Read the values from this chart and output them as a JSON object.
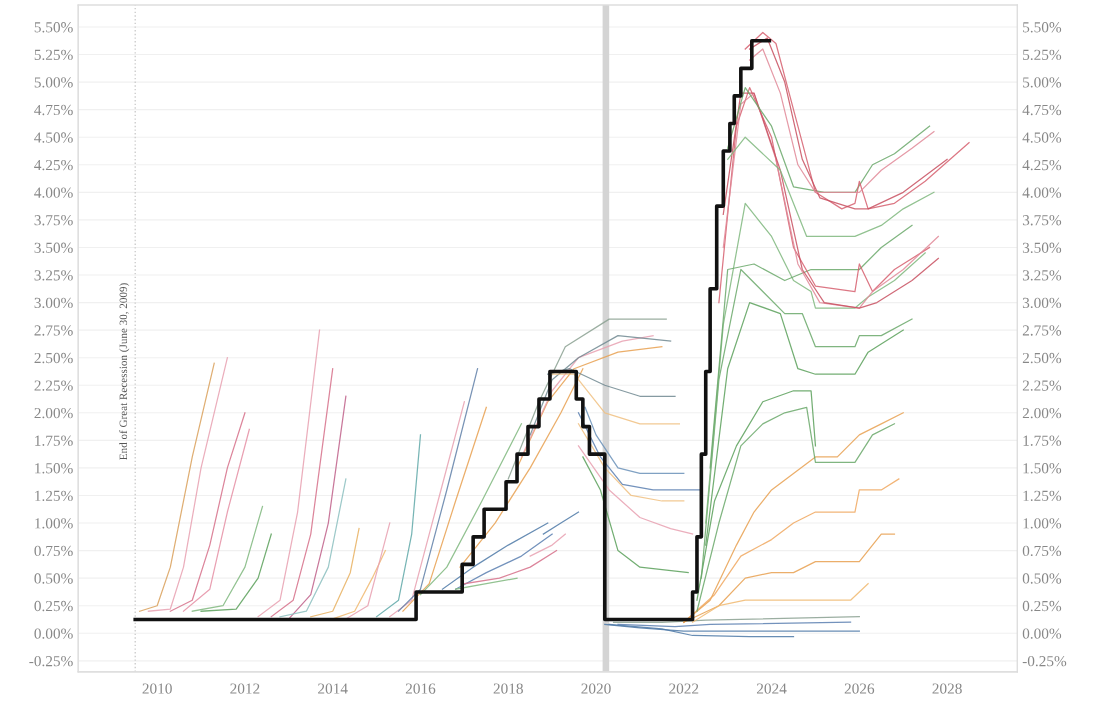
{
  "chart_data": {
    "type": "line",
    "xlim": [
      2008.2,
      2029.6
    ],
    "xticks": [
      2010,
      2012,
      2014,
      2016,
      2018,
      2020,
      2022,
      2024,
      2026,
      2028
    ],
    "ylim": [
      -0.35,
      5.7
    ],
    "yticks": [
      {
        "value": -0.25,
        "label": "-0.25%"
      },
      {
        "value": 0,
        "label": "0.00%"
      },
      {
        "value": 0.25,
        "label": "0.25%"
      },
      {
        "value": 0.5,
        "label": "0.50%"
      },
      {
        "value": 0.75,
        "label": "0.75%"
      },
      {
        "value": 1.0,
        "label": "1.00%"
      },
      {
        "value": 1.25,
        "label": "1.25%"
      },
      {
        "value": 1.5,
        "label": "1.50%"
      },
      {
        "value": 1.75,
        "label": "1.75%"
      },
      {
        "value": 2.0,
        "label": "2.00%"
      },
      {
        "value": 2.25,
        "label": "2.25%"
      },
      {
        "value": 2.5,
        "label": "2.50%"
      },
      {
        "value": 2.75,
        "label": "2.75%"
      },
      {
        "value": 3.0,
        "label": "3.00%"
      },
      {
        "value": 3.25,
        "label": "3.25%"
      },
      {
        "value": 3.5,
        "label": "3.50%"
      },
      {
        "value": 3.75,
        "label": "3.75%"
      },
      {
        "value": 4.0,
        "label": "4.00%"
      },
      {
        "value": 4.25,
        "label": "4.25%"
      },
      {
        "value": 4.5,
        "label": "4.50%"
      },
      {
        "value": 4.75,
        "label": "4.75%"
      },
      {
        "value": 5.0,
        "label": "5.00%"
      },
      {
        "value": 5.25,
        "label": "5.25%"
      },
      {
        "value": 5.5,
        "label": "5.50%"
      }
    ],
    "y2lim": [
      -0.35,
      5.7
    ],
    "y2ticks": [
      {
        "value": -0.25,
        "label": "-0.25%"
      },
      {
        "value": 0,
        "label": "0.00%"
      },
      {
        "value": 0.25,
        "label": "0.25%"
      },
      {
        "value": 0.5,
        "label": "0.50%"
      },
      {
        "value": 0.75,
        "label": "0.75%"
      },
      {
        "value": 1.0,
        "label": "1.00%"
      },
      {
        "value": 1.25,
        "label": "1.25%"
      },
      {
        "value": 1.5,
        "label": "1.50%"
      },
      {
        "value": 1.75,
        "label": "1.75%"
      },
      {
        "value": 2.0,
        "label": "2.00%"
      },
      {
        "value": 2.25,
        "label": "2.25%"
      },
      {
        "value": 2.5,
        "label": "2.50%"
      },
      {
        "value": 2.75,
        "label": "2.75%"
      },
      {
        "value": 3.0,
        "label": "3.00%"
      },
      {
        "value": 3.25,
        "label": "3.25%"
      },
      {
        "value": 3.5,
        "label": "3.50%"
      },
      {
        "value": 3.75,
        "label": "3.75%"
      },
      {
        "value": 4.0,
        "label": "4.00%"
      },
      {
        "value": 4.25,
        "label": "4.25%"
      },
      {
        "value": 4.5,
        "label": "4.50%"
      },
      {
        "value": 4.75,
        "label": "4.75%"
      },
      {
        "value": 5.0,
        "label": "5.00%"
      },
      {
        "value": 5.25,
        "label": "5.25%"
      },
      {
        "value": 5.5,
        "label": "5.50%"
      }
    ],
    "grid": "y",
    "ref_lines": [
      {
        "axis": "x",
        "value": 2009.5,
        "label": "End of Great Recession (June 30, 2009)",
        "color": "#cccccc",
        "line_style": "dotted"
      }
    ],
    "bands": [
      {
        "axis": "x",
        "from": 2020.15,
        "to": 2020.3,
        "color": "#d4d4d4"
      }
    ],
    "series": [
      {
        "color": "#d9a05b",
        "x": [
          2009.6,
          2010.0,
          2010.3,
          2010.8,
          2011.3
        ],
        "values": [
          0.2,
          0.25,
          0.6,
          1.6,
          2.45
        ]
      },
      {
        "color": "#e8a0b0",
        "x": [
          2009.8,
          2010.3,
          2010.6,
          2011.0,
          2011.6
        ],
        "values": [
          0.2,
          0.22,
          0.6,
          1.5,
          2.5
        ]
      },
      {
        "color": "#d6708a",
        "x": [
          2010.3,
          2010.8,
          2011.2,
          2011.6,
          2012.0
        ],
        "values": [
          0.2,
          0.3,
          0.8,
          1.5,
          2.0
        ]
      },
      {
        "color": "#e58fa5",
        "x": [
          2010.6,
          2011.2,
          2011.6,
          2012.1
        ],
        "values": [
          0.2,
          0.4,
          1.1,
          1.85
        ]
      },
      {
        "color": "#7fb77e",
        "x": [
          2010.8,
          2011.5,
          2012.0,
          2012.4
        ],
        "values": [
          0.2,
          0.25,
          0.6,
          1.15
        ]
      },
      {
        "color": "#5aa05a",
        "x": [
          2011.0,
          2011.8,
          2012.3,
          2012.6
        ],
        "values": [
          0.2,
          0.22,
          0.5,
          0.9
        ]
      },
      {
        "color": "#e8a0b0",
        "x": [
          2012.3,
          2012.8,
          2013.2,
          2013.7
        ],
        "values": [
          0.15,
          0.3,
          1.1,
          2.75
        ]
      },
      {
        "color": "#d6708a",
        "x": [
          2012.6,
          2013.1,
          2013.5,
          2014.0
        ],
        "values": [
          0.15,
          0.3,
          0.9,
          2.4
        ]
      },
      {
        "color": "#c0608a",
        "x": [
          2013.0,
          2013.5,
          2013.9,
          2014.3
        ],
        "values": [
          0.13,
          0.35,
          1.0,
          2.15
        ]
      },
      {
        "color": "#8cc0c0",
        "x": [
          2012.8,
          2013.4,
          2013.9,
          2014.3
        ],
        "values": [
          0.15,
          0.2,
          0.6,
          1.4
        ]
      },
      {
        "color": "#e8b060",
        "x": [
          2013.5,
          2014.0,
          2014.4,
          2014.6
        ],
        "values": [
          0.15,
          0.2,
          0.55,
          0.95
        ]
      },
      {
        "color": "#f0b870",
        "x": [
          2014.0,
          2014.5,
          2014.9,
          2015.2
        ],
        "values": [
          0.13,
          0.2,
          0.5,
          0.75
        ]
      },
      {
        "color": "#e8a0b0",
        "x": [
          2014.3,
          2014.8,
          2015.0,
          2015.3
        ],
        "values": [
          0.13,
          0.25,
          0.55,
          1.0
        ]
      },
      {
        "color": "#5fa8a8",
        "x": [
          2015.0,
          2015.5,
          2015.8,
          2016.0
        ],
        "values": [
          0.15,
          0.3,
          0.9,
          1.8
        ]
      },
      {
        "color": "#e8a0b0",
        "x": [
          2015.3,
          2015.8,
          2016.4,
          2017.0
        ],
        "values": [
          0.15,
          0.3,
          1.2,
          2.1
        ]
      },
      {
        "color": "#6080a8",
        "x": [
          2015.5,
          2016.0,
          2016.6,
          2017.3
        ],
        "values": [
          0.2,
          0.4,
          1.3,
          2.4
        ]
      },
      {
        "color": "#e8a050",
        "x": [
          2015.6,
          2016.2,
          2016.8,
          2017.5
        ],
        "values": [
          0.2,
          0.45,
          1.2,
          2.05
        ]
      },
      {
        "color": "#7fb77e",
        "x": [
          2016.0,
          2016.6,
          2017.4,
          2018.3
        ],
        "values": [
          0.35,
          0.6,
          1.2,
          1.9
        ]
      },
      {
        "color": "#4e79a7",
        "x": [
          2016.5,
          2017.2,
          2018.0,
          2018.9
        ],
        "values": [
          0.4,
          0.6,
          0.8,
          1.0
        ]
      },
      {
        "color": "#5a7fb0",
        "x": [
          2016.8,
          2017.5,
          2018.3,
          2019.0
        ],
        "values": [
          0.4,
          0.55,
          0.7,
          0.9
        ]
      },
      {
        "color": "#d6708a",
        "x": [
          2017.0,
          2017.8,
          2018.5,
          2019.1
        ],
        "values": [
          0.45,
          0.5,
          0.6,
          0.75
        ]
      },
      {
        "color": "#7fb77e",
        "x": [
          2016.8,
          2017.5,
          2018.2
        ],
        "values": [
          0.4,
          0.45,
          0.5
        ]
      },
      {
        "color": "#e8a050",
        "x": [
          2016.9,
          2017.7,
          2018.5,
          2019.2,
          2019.7
        ],
        "values": [
          0.6,
          1.0,
          1.5,
          2.0,
          2.4
        ]
      },
      {
        "color": "#8aa090",
        "x": [
          2018.0,
          2018.7,
          2019.3,
          2020.3,
          2021.6
        ],
        "values": [
          1.4,
          2.1,
          2.6,
          2.85,
          2.85
        ]
      },
      {
        "color": "#e8a050",
        "x": [
          2018.2,
          2018.9,
          2019.5,
          2020.5,
          2021.5
        ],
        "values": [
          1.5,
          2.1,
          2.4,
          2.55,
          2.6
        ]
      },
      {
        "color": "#e8a0b0",
        "x": [
          2018.3,
          2019.0,
          2019.6,
          2020.6,
          2021.3
        ],
        "values": [
          1.6,
          2.2,
          2.5,
          2.65,
          2.7
        ]
      },
      {
        "color": "#708890",
        "x": [
          2018.5,
          2019.0,
          2019.6,
          2020.5,
          2021.7
        ],
        "values": [
          1.8,
          2.3,
          2.5,
          2.7,
          2.65
        ]
      },
      {
        "color": "#708890",
        "x": [
          2018.9,
          2019.4,
          2020.2,
          2021.0,
          2021.8
        ],
        "values": [
          2.35,
          2.4,
          2.25,
          2.15,
          2.15
        ]
      },
      {
        "color": "#f0c080",
        "x": [
          2019.0,
          2019.5,
          2020.2,
          2021.0,
          2021.9
        ],
        "values": [
          2.35,
          2.35,
          2.0,
          1.9,
          1.9
        ]
      },
      {
        "color": "#6a90b8",
        "x": [
          2019.75,
          2020.0,
          2020.5,
          2021.0,
          2022.0
        ],
        "values": [
          2.05,
          1.8,
          1.5,
          1.45,
          1.45
        ]
      },
      {
        "color": "#5a7fb0",
        "x": [
          2019.6,
          2020.1,
          2020.6,
          2021.3,
          2022.4
        ],
        "values": [
          2.0,
          1.6,
          1.35,
          1.3,
          1.3
        ]
      },
      {
        "color": "#f0c080",
        "x": [
          2019.6,
          2020.2,
          2020.8,
          2021.5,
          2022.0
        ],
        "values": [
          1.9,
          1.5,
          1.25,
          1.2,
          1.2
        ]
      },
      {
        "color": "#e8a0b0",
        "x": [
          2019.6,
          2020.3,
          2021.0,
          2021.7,
          2022.2
        ],
        "values": [
          1.7,
          1.3,
          1.05,
          0.95,
          0.9
        ]
      },
      {
        "color": "#5aa05a",
        "x": [
          2019.7,
          2020.1,
          2020.5,
          2021.0,
          2022.1
        ],
        "values": [
          1.6,
          1.3,
          0.75,
          0.6,
          0.55
        ]
      },
      {
        "color": "#e8a0b0",
        "x": [
          2018.5,
          2019.0,
          2019.3
        ],
        "values": [
          0.7,
          0.8,
          0.9
        ]
      },
      {
        "color": "#4e79a7",
        "x": [
          2018.8,
          2019.2,
          2019.6
        ],
        "values": [
          0.9,
          1.0,
          1.1
        ]
      },
      {
        "color": "#4e79a7",
        "x": [
          2020.2,
          2021.0,
          2022.0,
          2023.0,
          2026.0
        ],
        "values": [
          0.08,
          0.05,
          0.02,
          0.02,
          0.02
        ]
      },
      {
        "color": "#4e79a7",
        "x": [
          2020.3,
          2021.5,
          2022.2,
          2023.5,
          2024.5
        ],
        "values": [
          0.08,
          0.04,
          -0.02,
          -0.03,
          -0.03
        ]
      },
      {
        "color": "#8aa090",
        "x": [
          2020.4,
          2021.5,
          2022.5,
          2026.0
        ],
        "values": [
          0.1,
          0.1,
          0.12,
          0.15
        ]
      },
      {
        "color": "#5a7fb0",
        "x": [
          2020.5,
          2021.8,
          2022.6,
          2025.8
        ],
        "values": [
          0.08,
          0.06,
          0.08,
          0.1
        ]
      },
      {
        "color": "#e8a050",
        "x": [
          2022.0,
          2022.6,
          2023.2,
          2023.6,
          2024.0,
          2024.5,
          2025.0,
          2025.5,
          2026.0,
          2026.5,
          2027.0
        ],
        "values": [
          0.1,
          0.3,
          0.8,
          1.1,
          1.3,
          1.45,
          1.6,
          1.6,
          1.8,
          1.9,
          2.0
        ]
      },
      {
        "color": "#f0a860",
        "x": [
          2022.0,
          2022.7,
          2023.3,
          2024.0,
          2024.5,
          2025.0,
          2025.9,
          2026.0,
          2026.5,
          2026.9
        ],
        "values": [
          0.1,
          0.35,
          0.7,
          0.85,
          1.0,
          1.1,
          1.1,
          1.3,
          1.3,
          1.4
        ]
      },
      {
        "color": "#e8a050",
        "x": [
          2022.0,
          2022.8,
          2023.4,
          2024.0,
          2024.5,
          2025.0,
          2026.0,
          2026.5,
          2026.8
        ],
        "values": [
          0.1,
          0.25,
          0.5,
          0.55,
          0.55,
          0.65,
          0.65,
          0.9,
          0.9
        ]
      },
      {
        "color": "#f0b870",
        "x": [
          2022.2,
          2022.8,
          2023.4,
          2025.0,
          2025.8,
          2026.2
        ],
        "values": [
          0.1,
          0.25,
          0.3,
          0.3,
          0.3,
          0.45
        ]
      },
      {
        "color": "#6aa86a",
        "x": [
          2022.3,
          2022.8,
          2023.3,
          2023.8,
          2024.3,
          2024.8,
          2025.0,
          2025.9,
          2026.3,
          2026.8
        ],
        "values": [
          0.2,
          1.0,
          1.7,
          1.9,
          2.0,
          2.05,
          1.55,
          1.55,
          1.8,
          1.9
        ]
      },
      {
        "color": "#5aa05a",
        "x": [
          2022.3,
          2022.7,
          2023.2,
          2023.8,
          2024.5,
          2024.9,
          2025.0
        ],
        "values": [
          0.3,
          1.2,
          1.7,
          2.1,
          2.2,
          2.2,
          1.7
        ]
      },
      {
        "color": "#6aa86a",
        "x": [
          2022.4,
          2022.8,
          2023.3,
          2023.8,
          2024.3,
          2024.7,
          2025.0,
          2025.9,
          2026.0,
          2026.5,
          2027.2
        ],
        "values": [
          0.5,
          2.3,
          3.3,
          3.1,
          2.9,
          2.9,
          2.6,
          2.6,
          2.7,
          2.7,
          2.85
        ]
      },
      {
        "color": "#7fb77e",
        "x": [
          2022.5,
          2022.9,
          2023.4,
          2024.0,
          2024.5,
          2024.9,
          2025.0,
          2025.9,
          2026.2,
          2026.8,
          2027.5
        ],
        "values": [
          1.0,
          2.8,
          3.9,
          3.6,
          3.2,
          3.1,
          2.95,
          2.95,
          3.05,
          3.2,
          3.45
        ]
      },
      {
        "color": "#5aa05a",
        "x": [
          2022.5,
          2023.0,
          2023.5,
          2024.2,
          2024.6,
          2025.0,
          2025.9,
          2026.2,
          2027.0
        ],
        "values": [
          0.8,
          2.4,
          3.0,
          2.9,
          2.4,
          2.35,
          2.35,
          2.55,
          2.75
        ]
      },
      {
        "color": "#6aa86a",
        "x": [
          2022.6,
          2023.0,
          2023.6,
          2024.3,
          2024.9,
          2025.0,
          2026.0,
          2026.5,
          2027.2
        ],
        "values": [
          1.5,
          3.3,
          3.35,
          3.2,
          3.3,
          3.3,
          3.3,
          3.5,
          3.7
        ]
      },
      {
        "color": "#d65f6f",
        "x": [
          2022.8,
          2023.2,
          2023.5,
          2024.0,
          2024.5,
          2025.0,
          2025.9,
          2026.0,
          2026.3,
          2026.8,
          2027.6
        ],
        "values": [
          3.0,
          4.6,
          4.95,
          4.5,
          3.5,
          3.15,
          3.1,
          3.35,
          3.1,
          3.3,
          3.5
        ]
      },
      {
        "color": "#e08898",
        "x": [
          2022.9,
          2023.3,
          2023.6,
          2024.1,
          2024.6,
          2025.1,
          2026.0,
          2026.3,
          2027.0,
          2027.8
        ],
        "values": [
          3.5,
          4.8,
          4.9,
          4.3,
          3.35,
          3.0,
          2.95,
          3.1,
          3.3,
          3.6
        ]
      },
      {
        "color": "#c85060",
        "x": [
          2022.9,
          2023.3,
          2023.6,
          2024.2,
          2024.7,
          2025.2,
          2026.0,
          2026.4,
          2027.2,
          2027.8
        ],
        "values": [
          3.8,
          4.9,
          4.9,
          4.2,
          3.3,
          3.0,
          2.95,
          3.0,
          3.2,
          3.4
        ]
      },
      {
        "color": "#6aa86a",
        "x": [
          2023.0,
          2023.4,
          2024.0,
          2024.5,
          2025.2,
          2025.9,
          2026.3,
          2026.8,
          2027.6
        ],
        "values": [
          4.4,
          4.95,
          4.6,
          4.05,
          4.0,
          4.0,
          4.25,
          4.35,
          4.6
        ]
      },
      {
        "color": "#7fb77e",
        "x": [
          2023.0,
          2023.4,
          2024.2,
          2024.8,
          2025.5,
          2025.9,
          2026.5,
          2027.0,
          2027.7
        ],
        "values": [
          4.3,
          4.5,
          4.2,
          3.6,
          3.6,
          3.6,
          3.7,
          3.85,
          4.0
        ]
      },
      {
        "color": "#d65f6f",
        "x": [
          2023.4,
          2023.8,
          2024.1,
          2024.6,
          2025.0,
          2025.6,
          2025.9,
          2026.0,
          2026.2,
          2026.8,
          2027.5,
          2028.5
        ],
        "values": [
          5.3,
          5.45,
          5.35,
          4.6,
          4.0,
          3.85,
          3.9,
          4.1,
          3.85,
          3.9,
          4.1,
          4.45
        ]
      },
      {
        "color": "#c85060",
        "x": [
          2023.5,
          2023.9,
          2024.3,
          2024.7,
          2025.1,
          2025.9,
          2026.2,
          2027.0,
          2028.0
        ],
        "values": [
          5.3,
          5.4,
          5.0,
          4.3,
          3.95,
          3.85,
          3.85,
          4.0,
          4.3
        ]
      },
      {
        "color": "#e08898",
        "x": [
          2023.5,
          2023.8,
          2024.2,
          2024.6,
          2025.0,
          2026.0,
          2026.5,
          2027.2,
          2027.7
        ],
        "values": [
          5.2,
          5.3,
          4.9,
          4.25,
          4.0,
          4.0,
          4.2,
          4.4,
          4.55
        ]
      },
      {
        "type": "step",
        "color": "#111111",
        "x": [
          2009.5,
          2015.9,
          2016.95,
          2017.2,
          2017.45,
          2017.95,
          2018.2,
          2018.45,
          2018.7,
          2018.95,
          2019.55,
          2019.7,
          2019.85,
          2020.2,
          2022.2,
          2022.3,
          2022.4,
          2022.5,
          2022.6,
          2022.75,
          2022.9,
          2023.05,
          2023.15,
          2023.3,
          2023.55,
          2023.95
        ],
        "values": [
          0.125,
          0.375,
          0.625,
          0.875,
          1.125,
          1.375,
          1.625,
          1.875,
          2.125,
          2.375,
          2.125,
          1.875,
          1.625,
          0.125,
          0.375,
          0.875,
          1.625,
          2.375,
          3.125,
          3.875,
          4.375,
          4.625,
          4.875,
          5.125,
          5.375,
          5.375
        ]
      }
    ]
  }
}
